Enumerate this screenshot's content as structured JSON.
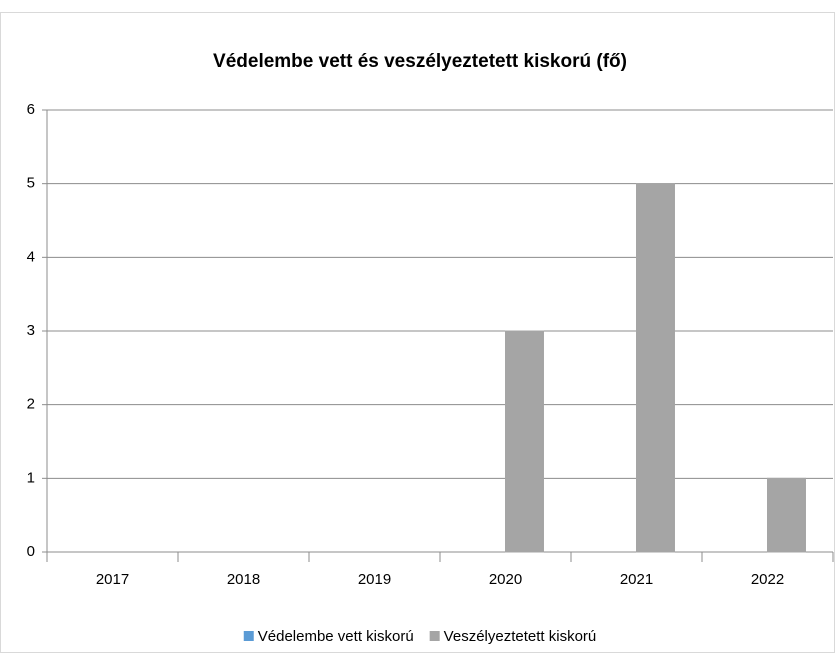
{
  "chart_data": {
    "type": "bar",
    "title": "Védelembe vett és veszélyeztetett kiskorú (fő)",
    "categories": [
      "2017",
      "2018",
      "2019",
      "2020",
      "2021",
      "2022"
    ],
    "series": [
      {
        "name": "Védelembe vett kiskorú",
        "color": "#5b9bd5",
        "values": [
          0,
          0,
          0,
          0,
          0,
          0
        ]
      },
      {
        "name": "Veszélyeztetett kiskorú",
        "color": "#a5a5a5",
        "values": [
          0,
          0,
          0,
          3,
          5,
          1
        ]
      }
    ],
    "ylim": [
      0,
      6
    ],
    "yticks": [
      0,
      1,
      2,
      3,
      4,
      5,
      6
    ],
    "grid": true,
    "legend": "bottom"
  }
}
